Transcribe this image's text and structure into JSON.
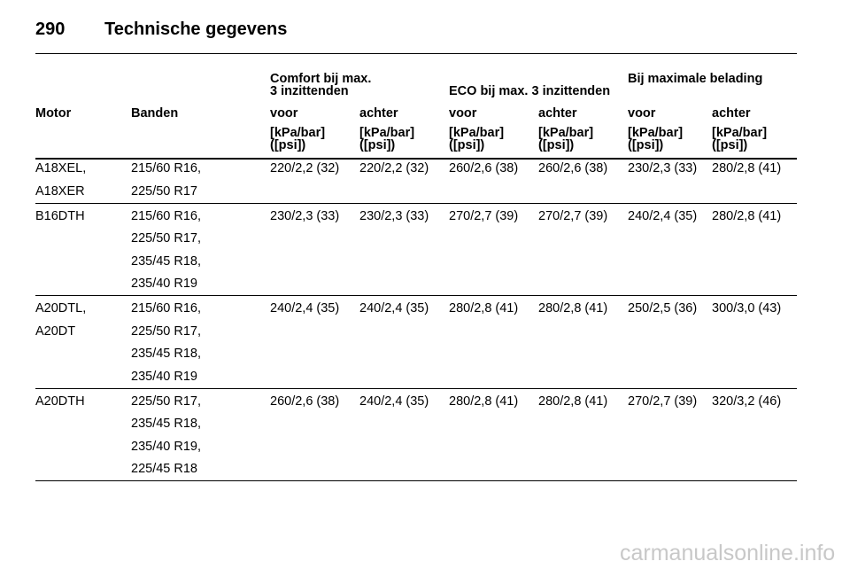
{
  "header": {
    "page_number": "290",
    "title": "Technische gegevens"
  },
  "table": {
    "groups": [
      {
        "lines": [
          "Comfort bij max.",
          "3 inzittenden"
        ]
      },
      {
        "lines": [
          "ECO bij max. 3 inzittenden"
        ]
      },
      {
        "lines": [
          "Bij maximale belading"
        ]
      }
    ],
    "columns": [
      "Motor",
      "Banden",
      "voor",
      "achter",
      "voor",
      "achter",
      "voor",
      "achter"
    ],
    "units": [
      [
        "[kPa/bar]",
        "([psi])"
      ],
      [
        "[kPa/bar]",
        "([psi])"
      ],
      [
        "[kPa/bar]",
        "([psi])"
      ],
      [
        "[kPa/bar]",
        "([psi])"
      ],
      [
        "[kPa/bar]",
        "([psi])"
      ],
      [
        "[kPa/bar]",
        "([psi])"
      ]
    ],
    "rows": [
      {
        "motor": [
          "A18XEL,",
          "A18XER"
        ],
        "tires": [
          "215/60 R16,",
          "225/50 R17"
        ],
        "values": [
          "220/2,2 (32)",
          "220/2,2 (32)",
          "260/2,6 (38)",
          "260/2,6 (38)",
          "230/2,3 (33)",
          "280/2,8 (41)"
        ]
      },
      {
        "motor": [
          "B16DTH"
        ],
        "tires": [
          "215/60 R16,",
          "225/50 R17,",
          "235/45 R18,",
          "235/40 R19"
        ],
        "values": [
          "230/2,3 (33)",
          "230/2,3 (33)",
          "270/2,7 (39)",
          "270/2,7 (39)",
          "240/2,4 (35)",
          "280/2,8 (41)"
        ]
      },
      {
        "motor": [
          "A20DTL,",
          "A20DT"
        ],
        "tires": [
          "215/60 R16,",
          "225/50 R17,",
          "235/45 R18,",
          "235/40 R19"
        ],
        "values": [
          "240/2,4 (35)",
          "240/2,4 (35)",
          "280/2,8 (41)",
          "280/2,8 (41)",
          "250/2,5 (36)",
          "300/3,0 (43)"
        ]
      },
      {
        "motor": [
          "A20DTH"
        ],
        "tires": [
          "225/50 R17,",
          "235/45 R18,",
          "235/40 R19,",
          "225/45 R18"
        ],
        "values": [
          "260/2,6 (38)",
          "240/2,4 (35)",
          "280/2,8 (41)",
          "280/2,8 (41)",
          "270/2,7 (39)",
          "320/3,2 (46)"
        ]
      }
    ]
  },
  "footer": {
    "watermark": "carmanualsonline.info"
  }
}
